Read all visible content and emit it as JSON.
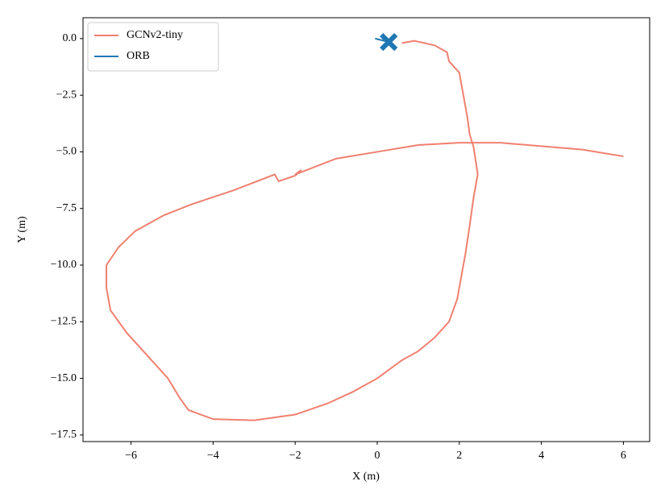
{
  "chart_data": {
    "type": "line",
    "x_label": "X (m)",
    "y_label": "Y (m)",
    "xlim": [
      -7.17,
      6.64
    ],
    "ylim": [
      -17.79,
      0.92
    ],
    "xticks": [
      {
        "value": -6,
        "label": "−6"
      },
      {
        "value": -4,
        "label": "−4"
      },
      {
        "value": -2,
        "label": "−2"
      },
      0,
      2,
      4,
      6
    ],
    "yticks": [
      {
        "value": 0,
        "label": "0.0"
      },
      {
        "value": -2.5,
        "label": "−2.5"
      },
      {
        "value": -5,
        "label": "−5.0"
      },
      {
        "value": -7.5,
        "label": "−7.5"
      },
      {
        "value": -10,
        "label": "−10.0"
      },
      {
        "value": -12.5,
        "label": "−12.5"
      },
      {
        "value": -15,
        "label": "−15.0"
      },
      {
        "value": -17.5,
        "label": "−17.5"
      }
    ],
    "legend": "upper left",
    "series": [
      {
        "name": "GCNv2-tiny",
        "color": "#f08070",
        "x": [
          0.6,
          0.9,
          1.4,
          1.7,
          1.75,
          2.0,
          2.1,
          2.2,
          2.25,
          2.35,
          2.4,
          2.45,
          2.35,
          2.25,
          2.15,
          2.05,
          1.95,
          1.75,
          1.4,
          1.0,
          0.6,
          0.0,
          -0.6,
          -1.2,
          -2.0,
          -3.0,
          -4.0,
          -4.6,
          -4.8,
          -5.1,
          -5.6,
          -6.1,
          -6.5,
          -6.6,
          -6.6,
          -6.3,
          -5.9,
          -5.2,
          -4.5,
          -3.5,
          -2.5,
          -2.4,
          -2.0,
          -1.85,
          -2.0,
          -1.0,
          0.0,
          1.0,
          2.0,
          3.0,
          4.0,
          5.0,
          6.0
        ],
        "y": [
          -0.2,
          -0.1,
          -0.3,
          -0.6,
          -1.0,
          -1.5,
          -2.5,
          -3.5,
          -4.2,
          -4.8,
          -5.4,
          -6.0,
          -7.0,
          -8.3,
          -9.5,
          -10.5,
          -11.5,
          -12.5,
          -13.2,
          -13.8,
          -14.2,
          -15.0,
          -15.6,
          -16.1,
          -16.6,
          -16.85,
          -16.8,
          -16.4,
          -15.9,
          -15.0,
          -14.0,
          -13.0,
          -12.0,
          -11.0,
          -10.0,
          -9.2,
          -8.5,
          -7.8,
          -7.3,
          -6.7,
          -6.0,
          -6.3,
          -6.05,
          -5.8,
          -6.0,
          -5.3,
          -5.0,
          -4.7,
          -4.6,
          -4.6,
          -4.75,
          -4.9,
          -5.2
        ]
      },
      {
        "name": "ORB",
        "color": "#1f77b4",
        "marker": "X",
        "x": [
          -0.05,
          0.28
        ],
        "y": [
          0.0,
          -0.15
        ]
      }
    ]
  }
}
